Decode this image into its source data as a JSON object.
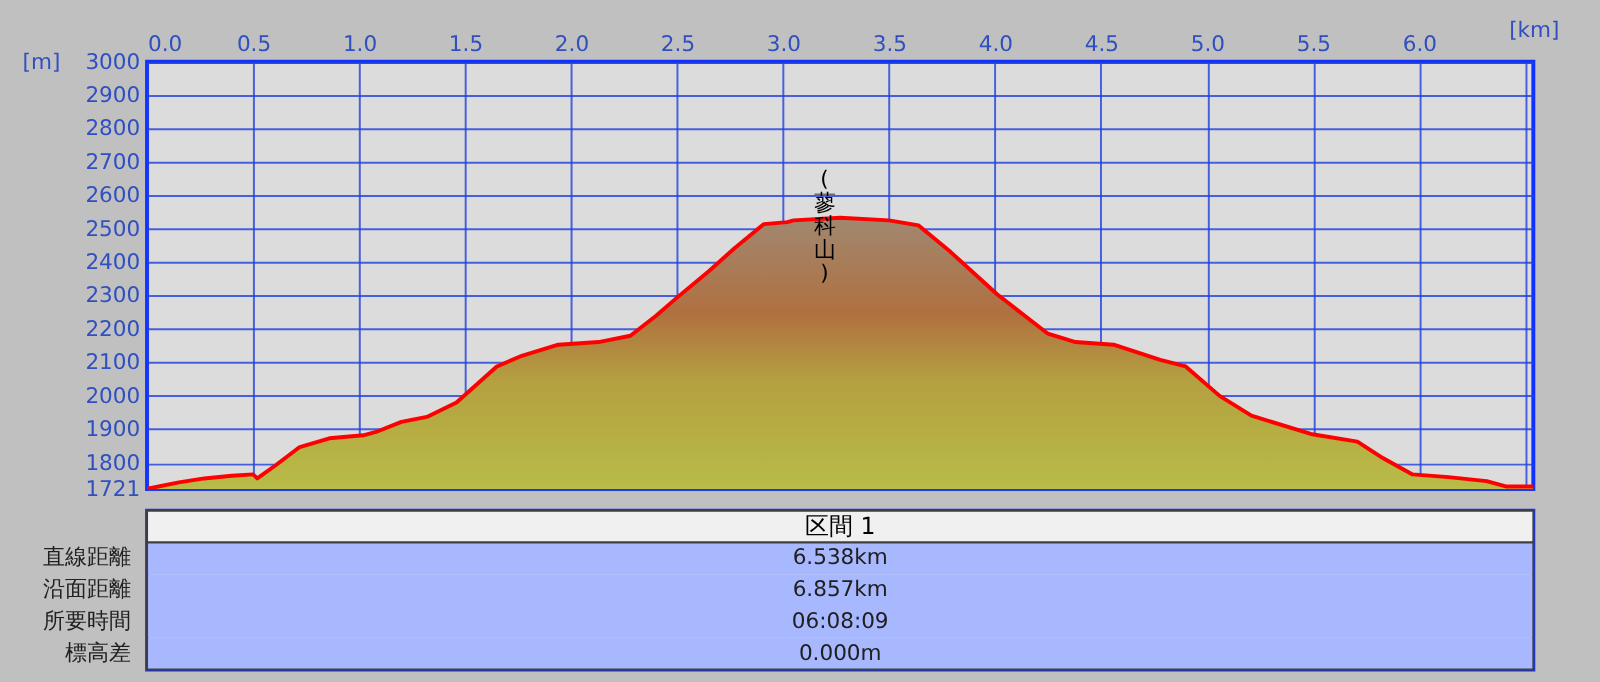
{
  "chart_data": {
    "type": "area",
    "xlabel": "[km]",
    "ylabel": "[m]",
    "xlim": [
      0,
      6.54
    ],
    "ylim": [
      1721,
      3000
    ],
    "xticks": [
      {
        "value": 0,
        "label": "0.0"
      },
      {
        "value": 0.5,
        "label": "0.5"
      },
      {
        "value": 1,
        "label": "1.0"
      },
      {
        "value": 1.5,
        "label": "1.5"
      },
      {
        "value": 2,
        "label": "2.0"
      },
      {
        "value": 2.5,
        "label": "2.5"
      },
      {
        "value": 3,
        "label": "3.0"
      },
      {
        "value": 3.5,
        "label": "3.5"
      },
      {
        "value": 4,
        "label": "4.0"
      },
      {
        "value": 4.5,
        "label": "4.5"
      },
      {
        "value": 5,
        "label": "5.0"
      },
      {
        "value": 5.5,
        "label": "5.5"
      },
      {
        "value": 6,
        "label": "6.0"
      },
      {
        "value": 6.5,
        "label": null
      }
    ],
    "yticks": [
      1721,
      1800,
      1900,
      2000,
      2100,
      2200,
      2300,
      2400,
      2500,
      2600,
      2700,
      2800,
      2900,
      3000
    ],
    "grid": true,
    "annotations": [
      "(蓼科山)",
      "区間 1",
      "直線距離",
      "6.538km",
      "沿面距離",
      "6.857km",
      "所要時間",
      "06:08:09",
      "標高差",
      "0.000m"
    ],
    "series": [
      {
        "color": "#ff0000",
        "x": [
          0,
          0.15,
          0.27,
          0.4,
          0.5,
          0.52,
          0.61,
          0.72,
          0.86,
          1.02,
          1.08,
          1.2,
          1.32,
          1.46,
          1.65,
          1.76,
          1.94,
          2.13,
          2.28,
          2.4,
          2.5,
          2.65,
          2.77,
          2.91,
          3.02,
          3.05,
          3.27,
          3.5,
          3.64,
          3.79,
          4.01,
          4.25,
          4.38,
          4.56,
          4.78,
          4.9,
          5.06,
          5.21,
          5.49,
          5.71,
          5.83,
          5.97,
          6.14,
          6.32,
          6.41,
          6.54
        ],
        "values": [
          1722,
          1741,
          1753,
          1761,
          1765,
          1753,
          1794,
          1847,
          1873,
          1882,
          1892,
          1922,
          1937,
          1980,
          2088,
          2118,
          2153,
          2161,
          2180,
          2239,
          2294,
          2373,
          2441,
          2514,
          2520,
          2525,
          2533,
          2525,
          2510,
          2431,
          2304,
          2186,
          2161,
          2153,
          2108,
          2088,
          2000,
          1941,
          1886,
          1863,
          1814,
          1765,
          1757,
          1745,
          1729,
          1729
        ]
      }
    ]
  }
}
